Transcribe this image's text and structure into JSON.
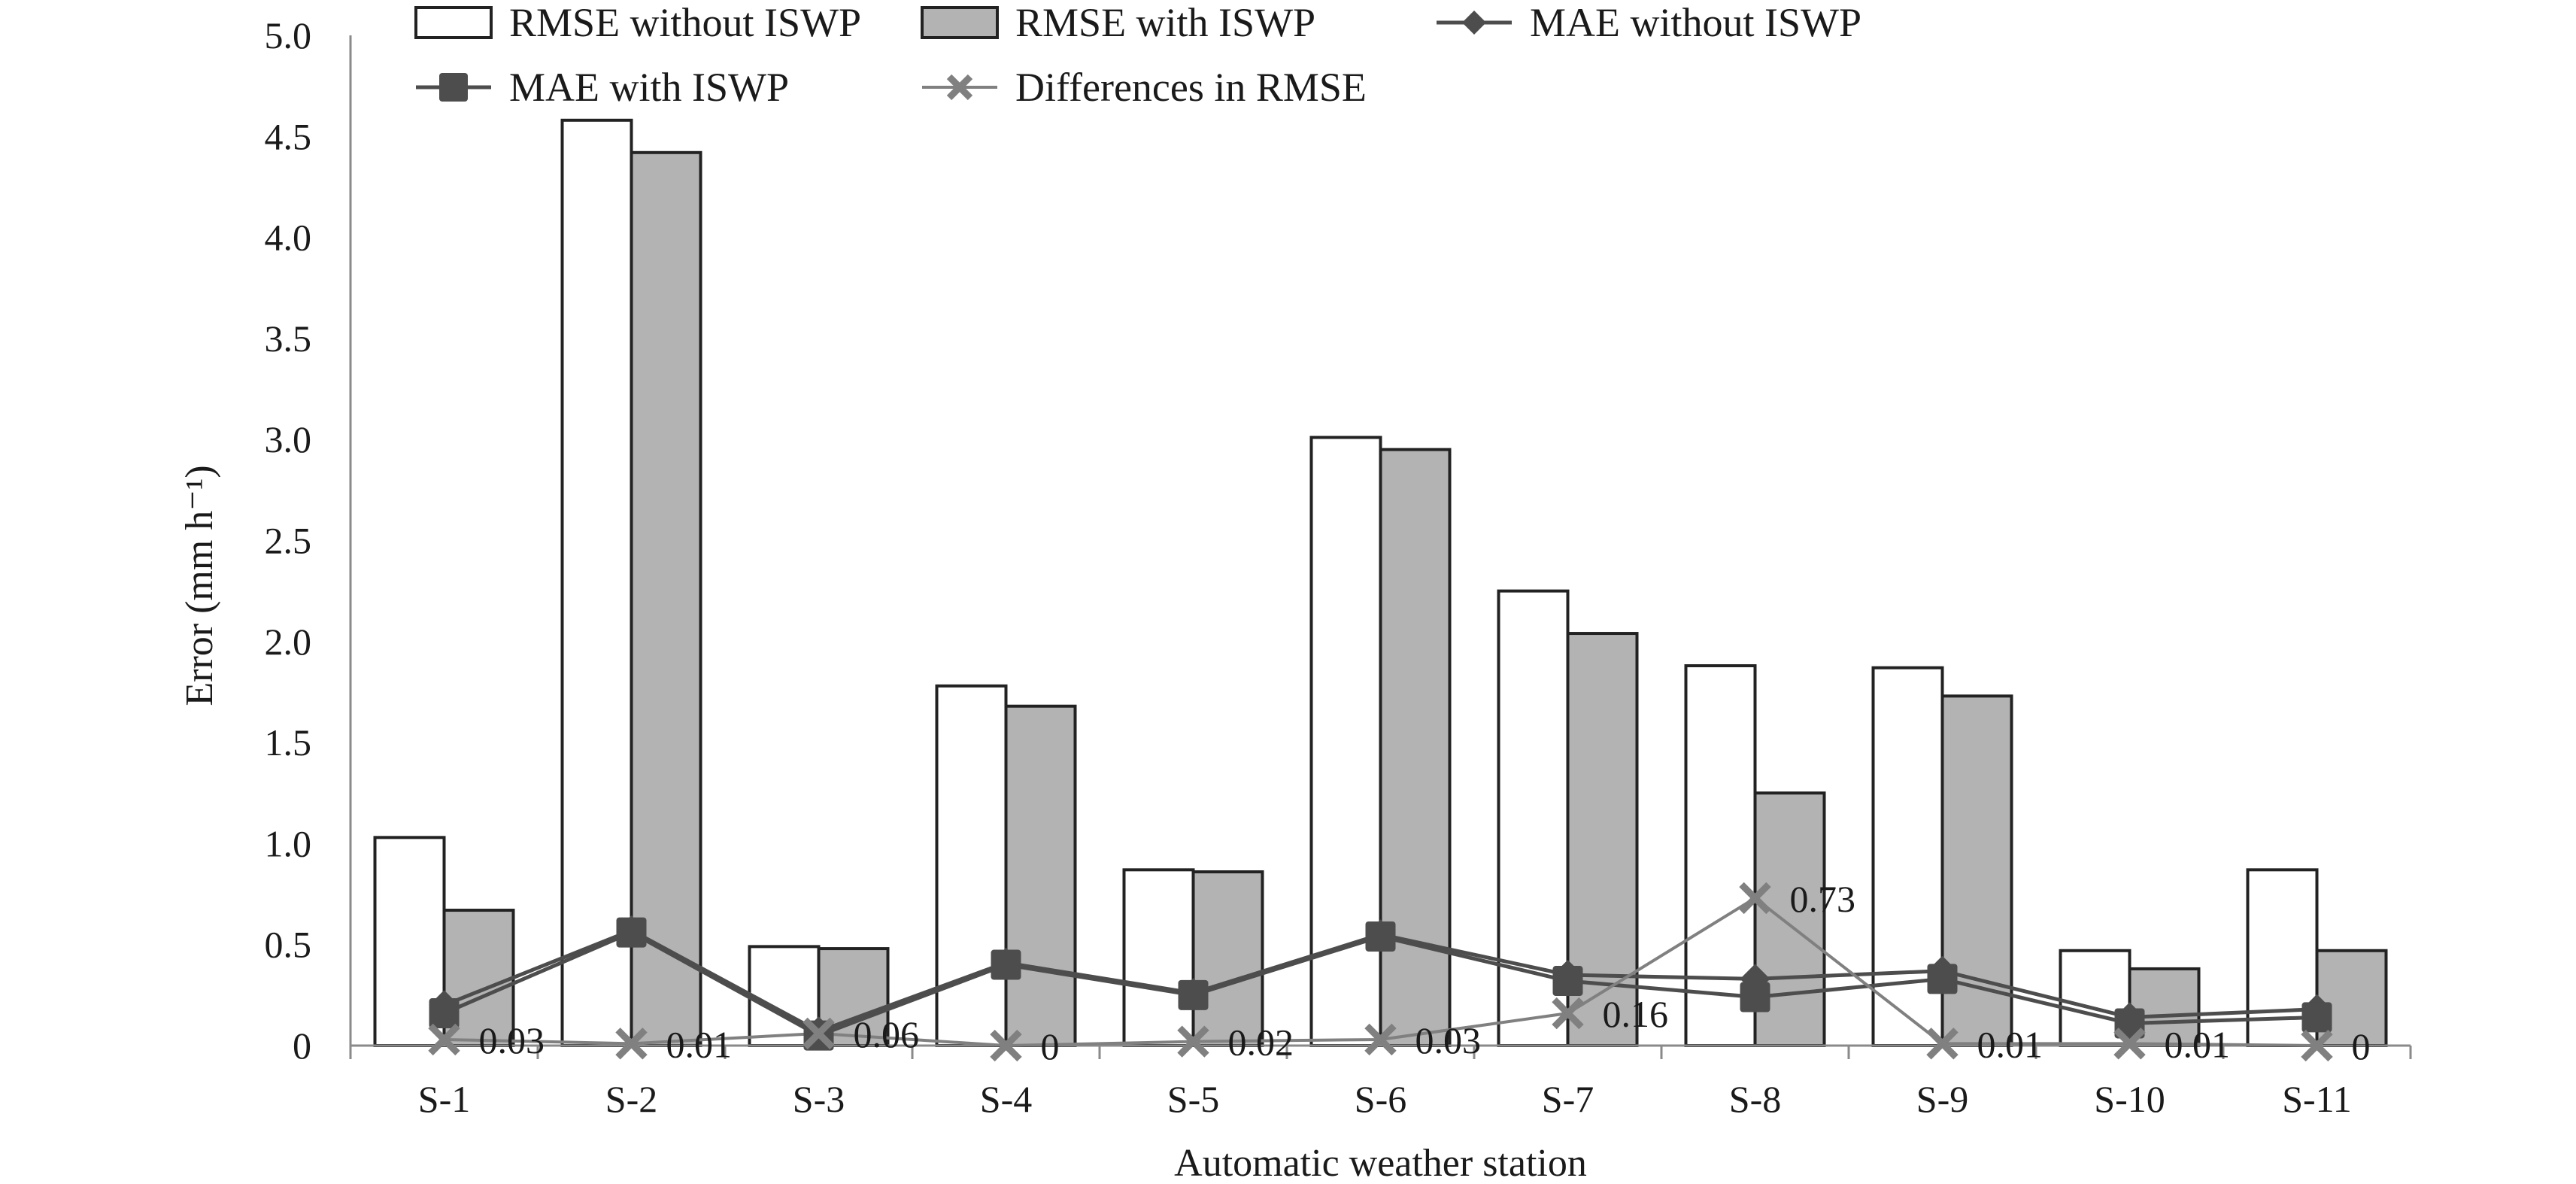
{
  "chart_data": {
    "type": "bar",
    "title": "",
    "xlabel": "Automatic weather station",
    "ylabel": "Error (mm h⁻¹)",
    "ylim": [
      0,
      5.0
    ],
    "yticks": [
      0,
      0.5,
      1.0,
      1.5,
      2.0,
      2.5,
      3.0,
      3.5,
      4.0,
      4.5,
      5.0
    ],
    "ytick_labels": [
      "0",
      "0.5",
      "1.0",
      "1.5",
      "2.0",
      "2.5",
      "3.0",
      "3.5",
      "4.0",
      "4.5",
      "5.0"
    ],
    "grid": false,
    "legend_position": "top",
    "categories": [
      "S-1",
      "S-2",
      "S-3",
      "S-4",
      "S-5",
      "S-6",
      "S-7",
      "S-8",
      "S-9",
      "S-10",
      "S-11"
    ],
    "series": [
      {
        "name": "RMSE without ISWP",
        "kind": "bar",
        "color": "#ffffff",
        "stroke": "#222222",
        "values": [
          1.03,
          4.58,
          0.49,
          1.78,
          0.87,
          3.01,
          2.25,
          1.88,
          1.87,
          0.47,
          0.87
        ]
      },
      {
        "name": "RMSE with ISWP",
        "kind": "bar",
        "color": "#b3b3b3",
        "stroke": "#222222",
        "values": [
          0.67,
          4.42,
          0.48,
          1.68,
          0.86,
          2.95,
          2.04,
          1.25,
          1.73,
          0.38,
          0.47
        ]
      },
      {
        "name": "MAE without ISWP",
        "kind": "line",
        "marker": "diamond",
        "color": "#4d4d4d",
        "values": [
          0.2,
          0.57,
          0.07,
          0.41,
          0.26,
          0.55,
          0.35,
          0.33,
          0.37,
          0.14,
          0.18
        ]
      },
      {
        "name": "MAE with ISWP",
        "kind": "line",
        "marker": "square",
        "color": "#4d4d4d",
        "values": [
          0.16,
          0.56,
          0.05,
          0.4,
          0.25,
          0.54,
          0.32,
          0.24,
          0.33,
          0.11,
          0.14
        ]
      },
      {
        "name": "Differences in RMSE",
        "kind": "line",
        "marker": "x",
        "color": "#808080",
        "values": [
          0.03,
          0.01,
          0.06,
          0,
          0.02,
          0.03,
          0.16,
          0.73,
          0.01,
          0.01,
          0
        ],
        "labels": [
          "0.03",
          "0.01",
          "0.06",
          "0",
          "0.02",
          "0.03",
          "0.16",
          "0.73",
          "0.01",
          "0.01",
          "0"
        ]
      }
    ]
  }
}
